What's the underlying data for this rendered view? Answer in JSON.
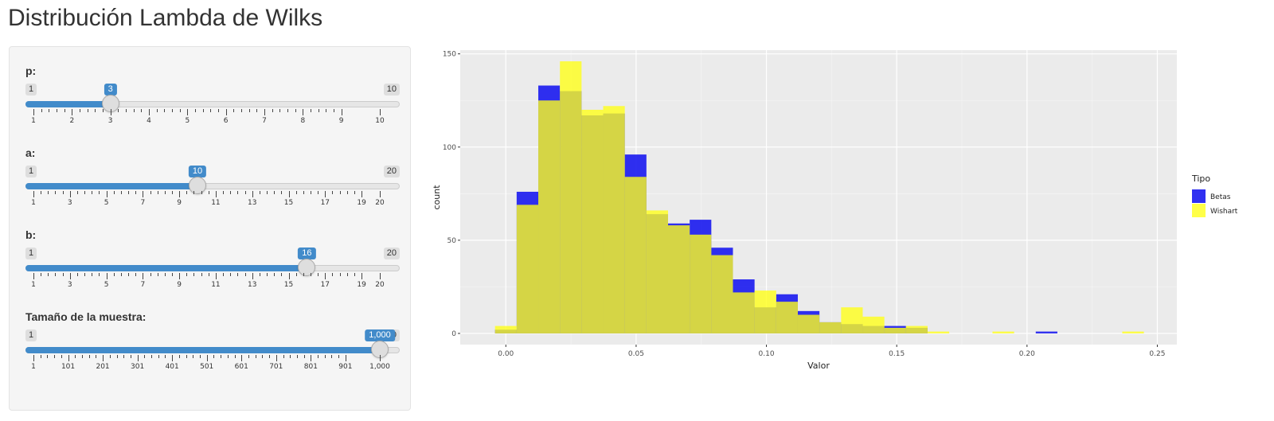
{
  "page": {
    "title": "Distribución Lambda de Wilks"
  },
  "sliders": [
    {
      "id": "p",
      "label": "p:",
      "min": 1,
      "max": 10,
      "value": 3,
      "value_display": "3",
      "min_display": "1",
      "max_display": "10",
      "tick_labels": [
        "1",
        "2",
        "3",
        "4",
        "5",
        "6",
        "7",
        "8",
        "9",
        "10"
      ]
    },
    {
      "id": "a",
      "label": "a:",
      "min": 1,
      "max": 20,
      "value": 10,
      "value_display": "10",
      "min_display": "1",
      "max_display": "20",
      "tick_labels": [
        "1",
        "3",
        "5",
        "7",
        "9",
        "11",
        "13",
        "15",
        "17",
        "19",
        "20"
      ]
    },
    {
      "id": "b",
      "label": "b:",
      "min": 1,
      "max": 20,
      "value": 16,
      "value_display": "16",
      "min_display": "1",
      "max_display": "20",
      "tick_labels": [
        "1",
        "3",
        "5",
        "7",
        "9",
        "11",
        "13",
        "15",
        "17",
        "19",
        "20"
      ]
    },
    {
      "id": "n",
      "label": "Tamaño de la muestra:",
      "min": 1,
      "max": 1000,
      "value": 1000,
      "value_display": "1,000",
      "min_display": "1",
      "max_display": "1,000",
      "tick_labels": [
        "1",
        "101",
        "201",
        "301",
        "401",
        "501",
        "601",
        "701",
        "801",
        "901",
        "1,000"
      ]
    }
  ],
  "colors": {
    "accent": "#428bca",
    "betas": "#1a1af0",
    "wishart": "#ffff1a",
    "panel_bg": "#ebebeb"
  },
  "chart_data": {
    "type": "bar",
    "xlabel": "Valor",
    "ylabel": "count",
    "xlim": [
      -0.0175,
      0.2575
    ],
    "ylim": [
      -6,
      152
    ],
    "x_ticks": [
      0.0,
      0.05,
      0.1,
      0.15,
      0.2,
      0.25
    ],
    "x_tick_labels": [
      "0.00",
      "0.05",
      "0.10",
      "0.15",
      "0.20",
      "0.25"
    ],
    "y_ticks": [
      0,
      50,
      100,
      150
    ],
    "y_tick_labels": [
      "0",
      "50",
      "100",
      "150"
    ],
    "grid": true,
    "legend": {
      "title": "Tipo",
      "position": "right",
      "entries": [
        "Betas",
        "Wishart"
      ]
    },
    "bin_width": 0.0083,
    "bin_centers": [
      0.0,
      0.0083,
      0.0166,
      0.0249,
      0.0332,
      0.0415,
      0.0498,
      0.0581,
      0.0664,
      0.0747,
      0.083,
      0.0913,
      0.0996,
      0.1079,
      0.1162,
      0.1245,
      0.1328,
      0.1411,
      0.1494,
      0.1577,
      0.166,
      0.1743,
      0.1826,
      0.1909,
      0.1992,
      0.2075,
      0.2158,
      0.2241,
      0.2324,
      0.2407
    ],
    "series": [
      {
        "name": "Betas",
        "values": [
          2,
          76,
          133,
          130,
          117,
          118,
          96,
          64,
          59,
          61,
          46,
          29,
          14,
          21,
          12,
          6,
          5,
          4,
          4,
          3,
          0,
          0,
          0,
          0,
          0,
          1,
          0,
          0,
          0,
          0
        ]
      },
      {
        "name": "Wishart",
        "values": [
          4,
          69,
          125,
          146,
          120,
          122,
          84,
          66,
          58,
          53,
          42,
          22,
          23,
          17,
          10,
          6,
          14,
          9,
          3,
          4,
          1,
          0,
          0,
          1,
          0,
          0,
          0,
          0,
          0,
          1
        ]
      }
    ]
  }
}
